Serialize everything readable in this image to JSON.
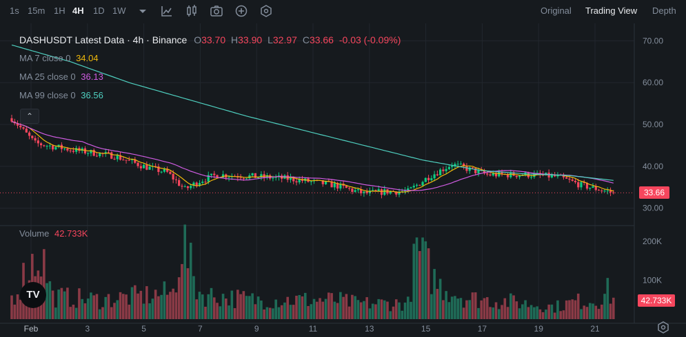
{
  "toolbar": {
    "intervals": [
      "1s",
      "15m",
      "1H",
      "4H",
      "1D",
      "1W"
    ],
    "active_interval": "4H",
    "views": [
      "Original",
      "Trading View",
      "Depth"
    ],
    "active_view": "Trading View",
    "icons": [
      "interval-dropdown-icon",
      "indicators-icon",
      "candle-type-icon",
      "screenshot-icon",
      "add-icon",
      "settings-hex-icon"
    ]
  },
  "legend": {
    "title": "DASHUSDT Latest Data · 4h · Binance",
    "o_label": "O",
    "o": "33.70",
    "h_label": "H",
    "h": "33.90",
    "l_label": "L",
    "l": "32.97",
    "c_label": "C",
    "c": "33.66",
    "change": "-0.03 (-0.09%)"
  },
  "ma": [
    {
      "label": "MA 7 close 0",
      "value": "34.04",
      "color": "#f0b90b"
    },
    {
      "label": "MA 25 close 0",
      "value": "36.13",
      "color": "#d05ce3"
    },
    {
      "label": "MA 99 close 0",
      "value": "36.56",
      "color": "#4fd0c0"
    }
  ],
  "volume_label": "Volume",
  "volume_value": "42.733K",
  "collapse_glyph": "⌃",
  "logo_text": "TV",
  "chart_data": {
    "type": "candlestick",
    "price_axis": {
      "ticks": [
        30,
        40,
        50,
        60,
        70
      ],
      "tick_labels": [
        "30.00",
        "40.00",
        "50.00",
        "60.00",
        "70.00"
      ],
      "range": [
        26.5,
        73.5
      ]
    },
    "volume_axis": {
      "ticks": [
        100,
        200
      ],
      "tick_labels": [
        "100K",
        "200K"
      ],
      "range": [
        0,
        230
      ]
    },
    "x_axis": {
      "labels": [
        "Feb",
        "3",
        "5",
        "7",
        "9",
        "11",
        "13",
        "15",
        "17",
        "19",
        "21"
      ],
      "day_start": 1,
      "day_end": 21.9
    },
    "last_price": "33.66",
    "last_price_value": 33.66,
    "last_volume": "42.733K",
    "colors": {
      "up": "#0ecb81",
      "down": "#f6465d",
      "ma7": "#f0b90b",
      "ma25": "#d05ce3",
      "ma99": "#4fd0c0"
    },
    "close_anchors": [
      [
        0,
        51.5
      ],
      [
        8,
        45.5
      ],
      [
        20,
        44.0
      ],
      [
        35,
        42.5
      ],
      [
        45,
        40.0
      ],
      [
        53,
        38.5
      ],
      [
        59,
        34.5
      ],
      [
        64,
        36.5
      ],
      [
        70,
        38.0
      ],
      [
        84,
        37.5
      ],
      [
        95,
        37.0
      ],
      [
        110,
        35.5
      ],
      [
        120,
        33.5
      ],
      [
        128,
        34.0
      ],
      [
        135,
        34.0
      ],
      [
        142,
        37.5
      ],
      [
        150,
        40.5
      ],
      [
        162,
        38.0
      ],
      [
        176,
        38.0
      ],
      [
        186,
        37.5
      ],
      [
        194,
        35.5
      ],
      [
        205,
        33.66
      ]
    ],
    "volume_anchors": [
      [
        0,
        60
      ],
      [
        6,
        150
      ],
      [
        10,
        190
      ],
      [
        14,
        65
      ],
      [
        30,
        55
      ],
      [
        55,
        75
      ],
      [
        58,
        230
      ],
      [
        63,
        90
      ],
      [
        65,
        70
      ],
      [
        82,
        55
      ],
      [
        95,
        55
      ],
      [
        110,
        55
      ],
      [
        118,
        45
      ],
      [
        135,
        45
      ],
      [
        138,
        200
      ],
      [
        145,
        100
      ],
      [
        155,
        60
      ],
      [
        170,
        50
      ],
      [
        185,
        35
      ],
      [
        192,
        50
      ],
      [
        200,
        55
      ],
      [
        203,
        80
      ],
      [
        206,
        42.7
      ]
    ],
    "ma99_anchors": [
      [
        0,
        69.0
      ],
      [
        20,
        65.0
      ],
      [
        40,
        60.0
      ],
      [
        60,
        56.0
      ],
      [
        80,
        52.0
      ],
      [
        100,
        48.5
      ],
      [
        120,
        45.0
      ],
      [
        140,
        41.5
      ],
      [
        160,
        39.0
      ],
      [
        175,
        38.2
      ],
      [
        190,
        37.8
      ],
      [
        206,
        36.56
      ]
    ]
  }
}
